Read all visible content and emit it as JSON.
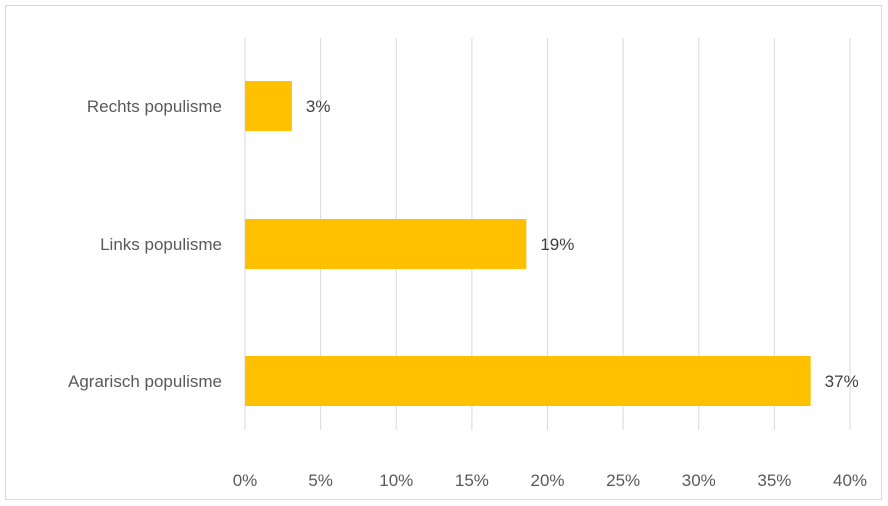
{
  "chart_data": {
    "type": "bar",
    "orientation": "horizontal",
    "categories": [
      "Rechts populisme",
      "Links populisme",
      "Agrarisch populisme"
    ],
    "values": [
      3.1,
      18.6,
      37.4
    ],
    "data_labels": [
      "3%",
      "19%",
      "37%"
    ],
    "x_ticks": [
      0,
      5,
      10,
      15,
      20,
      25,
      30,
      35,
      40
    ],
    "x_tick_labels": [
      "0%",
      "5%",
      "10%",
      "15%",
      "20%",
      "25%",
      "30%",
      "35%",
      "40%"
    ],
    "xlim": [
      0,
      40
    ],
    "grid": true,
    "legend": "none",
    "bar_color": "#ffc000",
    "title": "",
    "xlabel": "",
    "ylabel": ""
  }
}
